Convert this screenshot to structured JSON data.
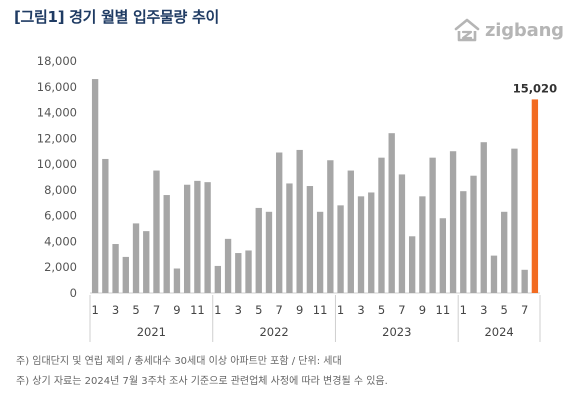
{
  "header": {
    "title": "[그림1] 경기 월별 입주물량 추이",
    "logo_text": "zigbang"
  },
  "chart_data": {
    "type": "bar",
    "title": "[그림1] 경기 월별 입주물량 추이",
    "xlabel": "",
    "ylabel": "",
    "ylim": [
      0,
      18000
    ],
    "yticks": [
      "0",
      "2,000",
      "4,000",
      "6,000",
      "8,000",
      "10,000",
      "12,000",
      "14,000",
      "16,000",
      "18,000"
    ],
    "grid": false,
    "bar_color": "#a6a6a6",
    "highlight_color": "#f26b21",
    "years": [
      {
        "label": "2021",
        "months": 12
      },
      {
        "label": "2022",
        "months": 12
      },
      {
        "label": "2023",
        "months": 12
      },
      {
        "label": "2024",
        "months": 8
      }
    ],
    "month_tick_labels": [
      "1",
      "3",
      "5",
      "7",
      "9",
      "11"
    ],
    "values": [
      16600,
      10400,
      3800,
      2800,
      5400,
      4800,
      9500,
      7600,
      1900,
      8400,
      8700,
      8600,
      2100,
      4200,
      3100,
      3300,
      6600,
      6300,
      10900,
      8500,
      11100,
      8300,
      6300,
      10300,
      6800,
      9500,
      7500,
      7800,
      10500,
      12400,
      9200,
      4400,
      7500,
      10500,
      5800,
      11000,
      7900,
      9100,
      11700,
      2900,
      6300,
      11200,
      1800,
      15020
    ],
    "highlight_index": 43,
    "annotations": [
      {
        "index": 43,
        "text": "15,020"
      }
    ]
  },
  "footnotes": [
    "주) 임대단지 및 연립 제외 / 총세대수 30세대 이상 아파트만 포함 / 단위: 세대",
    "주) 상기 자료는 2024년 7월 3주차 조사 기준으로 관련업체 사정에 따라 변경될 수 있음."
  ]
}
